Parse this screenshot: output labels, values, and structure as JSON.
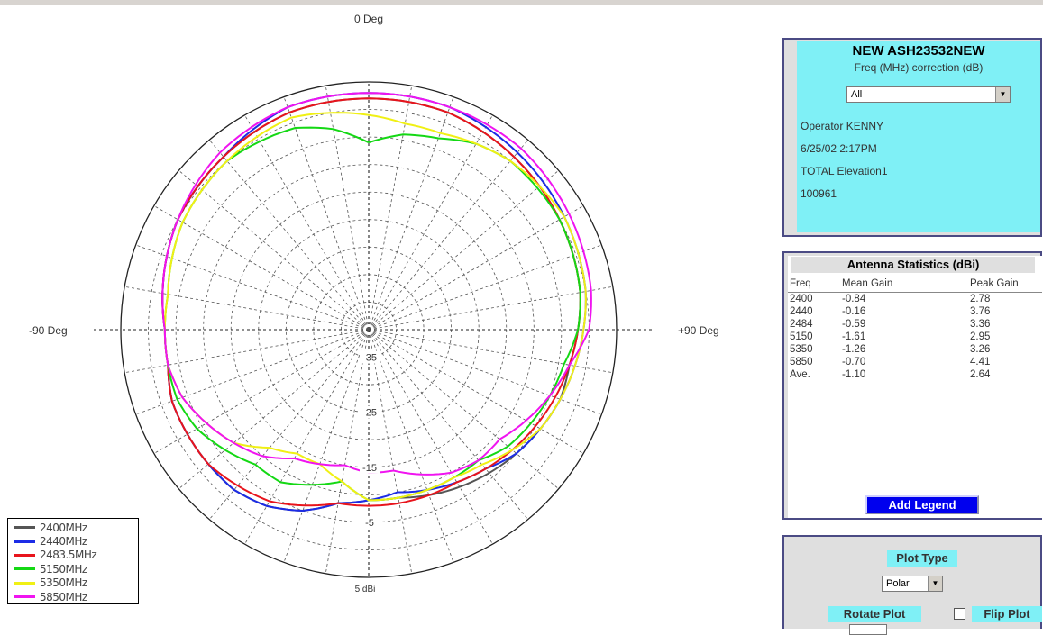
{
  "chart_data": {
    "type": "polar",
    "angle_labels": {
      "top": "0 Deg",
      "left": "-90 Deg",
      "right": "+90 Deg"
    },
    "radial_labels": [
      "-35",
      "-25",
      "-15",
      "-5",
      "5 dBi"
    ],
    "radial_range": [
      -40,
      5
    ],
    "grid": true,
    "legend_position": "bottom-left",
    "series": [
      {
        "name": "2400MHz",
        "color": "#555555",
        "angles": [
          0,
          20,
          40,
          60,
          80,
          90,
          100,
          110,
          120,
          130,
          140,
          150,
          160,
          170,
          180,
          190,
          200,
          210,
          220,
          230,
          240,
          250,
          260,
          270,
          280,
          290,
          300,
          320,
          340,
          360
        ],
        "values": [
          2,
          2,
          1,
          0,
          -1,
          -2,
          -3,
          -3,
          -4,
          -5,
          -6,
          -7,
          -8,
          -9,
          -9,
          -8,
          -5,
          -3,
          -2,
          -2,
          -2,
          -2,
          -3,
          -3,
          -2,
          -1,
          0,
          1,
          2,
          2
        ]
      },
      {
        "name": "2440MHz",
        "color": "#1c2ce6",
        "angles": [
          0,
          20,
          40,
          60,
          80,
          90,
          100,
          110,
          120,
          130,
          140,
          150,
          160,
          170,
          180,
          190,
          200,
          210,
          220,
          230,
          240,
          250,
          260,
          270,
          280,
          290,
          300,
          320,
          340,
          360
        ],
        "values": [
          3,
          3,
          2,
          1,
          0,
          -1,
          -2,
          -3,
          -4,
          -5,
          -7,
          -8,
          -9,
          -10,
          -9,
          -8,
          -5,
          -3,
          -2,
          -2,
          -2,
          -2,
          -3,
          -3,
          -2,
          -1,
          0,
          1,
          3,
          3
        ]
      },
      {
        "name": "2483.5MHz",
        "color": "#e8141c",
        "angles": [
          0,
          20,
          40,
          60,
          80,
          90,
          100,
          110,
          120,
          130,
          140,
          150,
          160,
          170,
          180,
          190,
          200,
          210,
          220,
          230,
          240,
          250,
          260,
          270,
          280,
          290,
          300,
          320,
          340,
          360
        ],
        "values": [
          2,
          2,
          1,
          0,
          -1,
          -2,
          -3,
          -4,
          -5,
          -6,
          -7,
          -8,
          -8,
          -8,
          -8,
          -8,
          -6,
          -4,
          -3,
          -2,
          -2,
          -2,
          -3,
          -3,
          -2,
          -1,
          0,
          1,
          2,
          2
        ]
      },
      {
        "name": "5150MHz",
        "color": "#14d814",
        "angles": [
          0,
          10,
          20,
          30,
          40,
          60,
          80,
          90,
          100,
          110,
          120,
          130,
          140,
          150,
          160,
          170,
          180,
          190,
          200,
          210,
          220,
          230,
          240,
          250,
          260,
          270,
          280,
          300,
          320,
          340,
          350,
          360
        ],
        "values": [
          -6,
          -4,
          -3,
          -1,
          0,
          0,
          -1,
          -2,
          -4,
          -5,
          -6,
          -7,
          -9,
          -9,
          -9,
          -9,
          -9,
          -12,
          -10,
          -8,
          -8,
          -6,
          -4,
          -3,
          -3,
          -3,
          -3,
          -1,
          0,
          -1,
          -3,
          -6
        ]
      },
      {
        "name": "5350MHz",
        "color": "#f0f014",
        "angles": [
          0,
          10,
          20,
          30,
          40,
          60,
          80,
          90,
          100,
          110,
          120,
          130,
          140,
          150,
          160,
          170,
          180,
          190,
          200,
          210,
          220,
          230,
          240,
          250,
          260,
          270,
          280,
          300,
          320,
          340,
          350,
          360
        ],
        "values": [
          -1,
          -2,
          -2,
          -1,
          0,
          1,
          0,
          -1,
          -2,
          -3,
          -4,
          -6,
          -8,
          -9,
          -9,
          -9,
          -9,
          -12,
          -14,
          -14,
          -12,
          -8,
          -6,
          -4,
          -3,
          -3,
          -3,
          -1,
          0,
          1,
          0,
          -1
        ]
      },
      {
        "name": "5850MHz",
        "color": "#f014f0",
        "angles": [
          0,
          20,
          40,
          60,
          80,
          90,
          100,
          110,
          120,
          130,
          140,
          150,
          160,
          170,
          180,
          190,
          200,
          210,
          220,
          230,
          240,
          250,
          260,
          270,
          280,
          290,
          300,
          320,
          340,
          360
        ],
        "values": [
          3,
          3,
          3,
          2,
          1,
          0,
          -3,
          -5,
          -7,
          -9,
          -9,
          -10,
          -12,
          -14,
          -14,
          -15,
          -14,
          -13,
          -10,
          -8,
          -6,
          -4,
          -3,
          -3,
          -2,
          -1,
          0,
          2,
          3,
          3
        ]
      }
    ]
  },
  "info": {
    "title": "NEW ASH23532NEW",
    "subtitle": "Freq (MHz)   correction (dB)",
    "freq_select": "All",
    "operator": "Operator  KENNY",
    "datetime": "6/25/02    2:17PM",
    "mode": "TOTAL    Elevation1",
    "id": "100961"
  },
  "stats": {
    "title": "Antenna Statistics (dBi)",
    "headers": [
      "Freq",
      "Mean Gain",
      "Peak Gain"
    ],
    "rows": [
      [
        "2400",
        "-0.84",
        "2.78"
      ],
      [
        "2440",
        "-0.16",
        "3.76"
      ],
      [
        "2484",
        "-0.59",
        "3.36"
      ],
      [
        "5150",
        "-1.61",
        "2.95"
      ],
      [
        "5350",
        "-1.26",
        "3.26"
      ],
      [
        "5850",
        "-0.70",
        "4.41"
      ],
      [
        "Ave.",
        "-1.10",
        "2.64"
      ]
    ],
    "add_legend": "Add Legend"
  },
  "plot": {
    "type_label": "Plot Type",
    "type_value": "Polar",
    "rotate_label": "Rotate Plot",
    "flip_label": "Flip Plot"
  }
}
